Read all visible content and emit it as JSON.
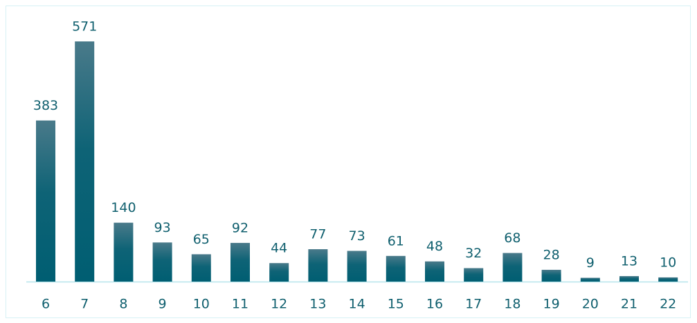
{
  "chart_data": {
    "type": "bar",
    "categories": [
      "6",
      "7",
      "8",
      "9",
      "10",
      "11",
      "12",
      "13",
      "14",
      "15",
      "16",
      "17",
      "18",
      "19",
      "20",
      "21",
      "22"
    ],
    "values": [
      383,
      571,
      140,
      93,
      65,
      92,
      44,
      77,
      73,
      61,
      48,
      32,
      68,
      28,
      9,
      13,
      10
    ],
    "color": "#00607a"
  }
}
